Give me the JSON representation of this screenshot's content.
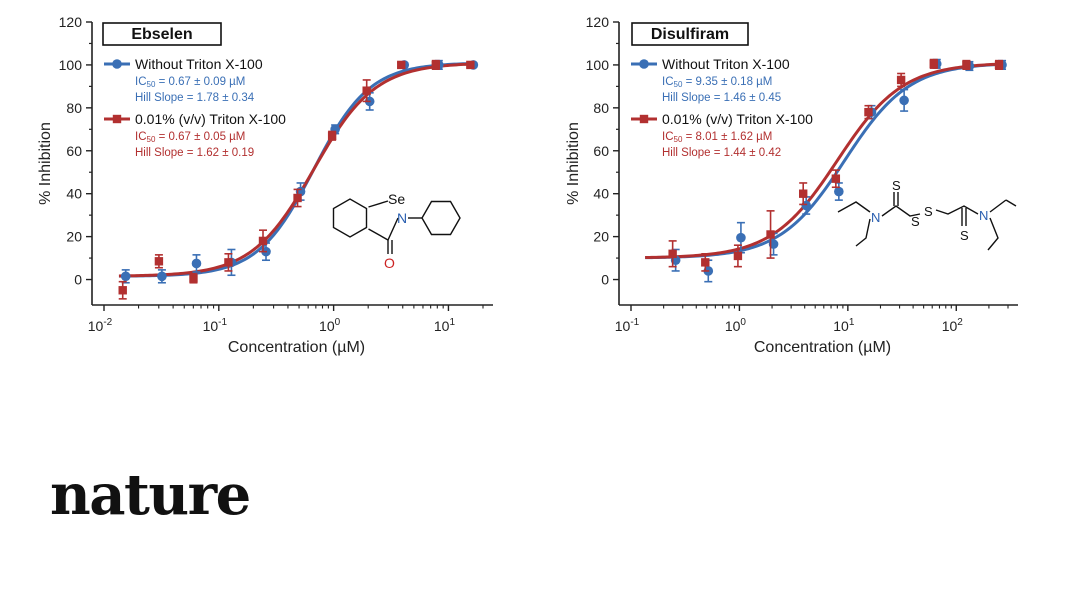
{
  "brand": {
    "logo_text": "nature"
  },
  "colors": {
    "without": "#3a6fb5",
    "with": "#b23030",
    "axis": "#222222",
    "structure_label_blue": "#2a5fb0",
    "structure_label_red": "#cc2222"
  },
  "chart_data": [
    {
      "type": "scatter",
      "panel_title": "Ebselen",
      "xlabel": "Concentration (µM)",
      "ylabel": "% Inhibition",
      "xscale": "log",
      "xlim": [
        0.01,
        20
      ],
      "ylim": [
        -10,
        120
      ],
      "x_ticks": [
        0.01,
        0.1,
        1,
        10
      ],
      "x_tick_labels": [
        {
          "base": "10",
          "exp": "-2"
        },
        {
          "base": "10",
          "exp": "-1"
        },
        {
          "base": "10",
          "exp": "0"
        },
        {
          "base": "10",
          "exp": "1"
        }
      ],
      "y_ticks": [
        0,
        20,
        40,
        60,
        80,
        100,
        120
      ],
      "legend_position": "top-left",
      "structure_labels": [
        "Se",
        "N",
        "O"
      ],
      "series": [
        {
          "name": "Without Triton X-100",
          "color_key": "without",
          "marker": "circle",
          "ic50_text": "IC50 = 0.67 ± 0.09 µM",
          "hill_text": "Hill Slope = 1.78 ± 0.34",
          "fit": {
            "ic50": 0.67,
            "hill": 1.78,
            "bottom": 1.5,
            "top": 101
          },
          "x": [
            0.015,
            0.031,
            0.062,
            0.125,
            0.25,
            0.5,
            1,
            2,
            4,
            8,
            16
          ],
          "y": [
            1.5,
            1.5,
            7.5,
            8,
            13,
            41,
            70,
            83,
            100,
            100,
            100
          ],
          "err": [
            3,
            3,
            4,
            6,
            4,
            4,
            2,
            4,
            1,
            2,
            1
          ]
        },
        {
          "name": "0.01% (v/v) Triton X-100",
          "color_key": "with",
          "marker": "square",
          "ic50_text": "IC50 = 0.67 ± 0.05 µM",
          "hill_text": "Hill Slope = 1.62 ± 0.19",
          "fit": {
            "ic50": 0.67,
            "hill": 1.62,
            "bottom": 1.5,
            "top": 101
          },
          "x": [
            0.015,
            0.031,
            0.062,
            0.125,
            0.25,
            0.5,
            1,
            2,
            4,
            8,
            16
          ],
          "y": [
            -5,
            8.5,
            0.5,
            8,
            18,
            38,
            67,
            88,
            100,
            100,
            100
          ],
          "err": [
            4,
            3,
            2,
            4,
            5,
            4,
            2,
            5,
            1,
            2,
            1
          ]
        }
      ]
    },
    {
      "type": "scatter",
      "panel_title": "Disulfiram",
      "xlabel": "Concentration (µM)",
      "ylabel": "% Inhibition",
      "xscale": "log",
      "xlim": [
        0.1,
        300
      ],
      "ylim": [
        -10,
        120
      ],
      "x_ticks": [
        0.1,
        1,
        10,
        100
      ],
      "x_tick_labels": [
        {
          "base": "10",
          "exp": "-1"
        },
        {
          "base": "10",
          "exp": "0"
        },
        {
          "base": "10",
          "exp": "1"
        },
        {
          "base": "10",
          "exp": "2"
        }
      ],
      "y_ticks": [
        0,
        20,
        40,
        60,
        80,
        100,
        120
      ],
      "legend_position": "top-left",
      "structure_labels": [
        "S",
        "N",
        "S",
        "S",
        "N",
        "S"
      ],
      "series": [
        {
          "name": "Without Triton X-100",
          "color_key": "without",
          "marker": "circle",
          "ic50_text": "IC50 = 9.35 ± 0.18 µM",
          "hill_text": "Hill Slope = 1.46 ± 0.45",
          "fit": {
            "ic50": 9.35,
            "hill": 1.46,
            "bottom": 10,
            "top": 101
          },
          "x": [
            0.25,
            0.5,
            1,
            2,
            4,
            8,
            16,
            32,
            64,
            128,
            256
          ],
          "y": [
            9,
            4,
            19.5,
            16.5,
            34.5,
            41,
            78,
            83.5,
            100.5,
            99.5,
            100
          ],
          "err": [
            5,
            5,
            7,
            5,
            4,
            4,
            3,
            5,
            2,
            2,
            2
          ]
        },
        {
          "name": "0.01% (v/v) Triton X-100",
          "color_key": "with",
          "marker": "square",
          "ic50_text": "IC50 = 8.01 ± 1.62 µM",
          "hill_text": "Hill Slope = 1.44 ± 0.42",
          "fit": {
            "ic50": 8.01,
            "hill": 1.44,
            "bottom": 10,
            "top": 101
          },
          "x": [
            0.25,
            0.5,
            1,
            2,
            4,
            8,
            16,
            32,
            64,
            128,
            256
          ],
          "y": [
            12,
            8,
            11,
            21,
            40,
            47,
            78,
            93,
            100.5,
            100,
            100
          ],
          "err": [
            6,
            4,
            5,
            11,
            5,
            4,
            3,
            3,
            2,
            2,
            2
          ]
        }
      ]
    }
  ]
}
